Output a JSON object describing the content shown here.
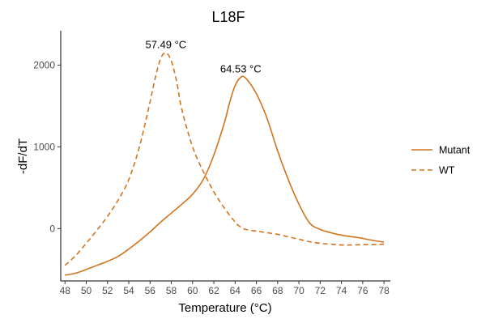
{
  "chart_data": {
    "type": "line",
    "title": "L18F",
    "xlabel": "Temperature (°C)",
    "ylabel": "-dF/dT",
    "xlim": [
      47.6,
      78.6
    ],
    "ylim": [
      -640,
      2420
    ],
    "x_ticks": [
      48,
      50,
      52,
      54,
      56,
      58,
      60,
      62,
      64,
      66,
      68,
      70,
      72,
      74,
      76,
      78
    ],
    "y_ticks": [
      0,
      1000,
      2000
    ],
    "grid": false,
    "legend_position": "right",
    "line_color": "#D2741E",
    "series": [
      {
        "name": "Mutant",
        "style": "solid",
        "x": [
          48,
          49,
          50,
          51,
          52,
          53,
          54,
          55,
          56,
          57,
          58,
          59,
          60,
          61,
          62,
          63,
          63.5,
          64,
          64.53,
          65,
          66,
          67,
          68,
          69,
          70,
          71,
          72,
          73,
          74,
          75,
          76,
          77,
          78
        ],
        "y": [
          -570,
          -545,
          -500,
          -450,
          -400,
          -340,
          -250,
          -150,
          -40,
          80,
          190,
          300,
          420,
          600,
          900,
          1300,
          1550,
          1750,
          1850,
          1840,
          1650,
          1350,
          950,
          600,
          300,
          70,
          -10,
          -50,
          -80,
          -100,
          -120,
          -145,
          -165
        ]
      },
      {
        "name": "WT",
        "style": "dashed",
        "x": [
          48,
          49,
          50,
          51,
          52,
          53,
          54,
          55,
          56,
          56.5,
          57,
          57.49,
          58,
          58.5,
          59,
          60,
          61,
          62,
          63,
          64,
          64.5,
          65,
          66,
          67,
          68,
          69,
          70,
          71,
          72,
          73,
          74,
          75,
          76,
          77,
          78
        ],
        "y": [
          -450,
          -330,
          -180,
          -20,
          150,
          350,
          600,
          1000,
          1550,
          1850,
          2080,
          2150,
          2050,
          1800,
          1450,
          1000,
          700,
          450,
          250,
          80,
          20,
          -10,
          -30,
          -50,
          -70,
          -100,
          -130,
          -160,
          -180,
          -190,
          -200,
          -200,
          -195,
          -195,
          -190
        ]
      }
    ],
    "annotations": [
      {
        "text": "57.49 °C",
        "x": 57.49,
        "y": 2150
      },
      {
        "text": "64.53 °C",
        "x": 64.53,
        "y": 1850
      }
    ]
  }
}
